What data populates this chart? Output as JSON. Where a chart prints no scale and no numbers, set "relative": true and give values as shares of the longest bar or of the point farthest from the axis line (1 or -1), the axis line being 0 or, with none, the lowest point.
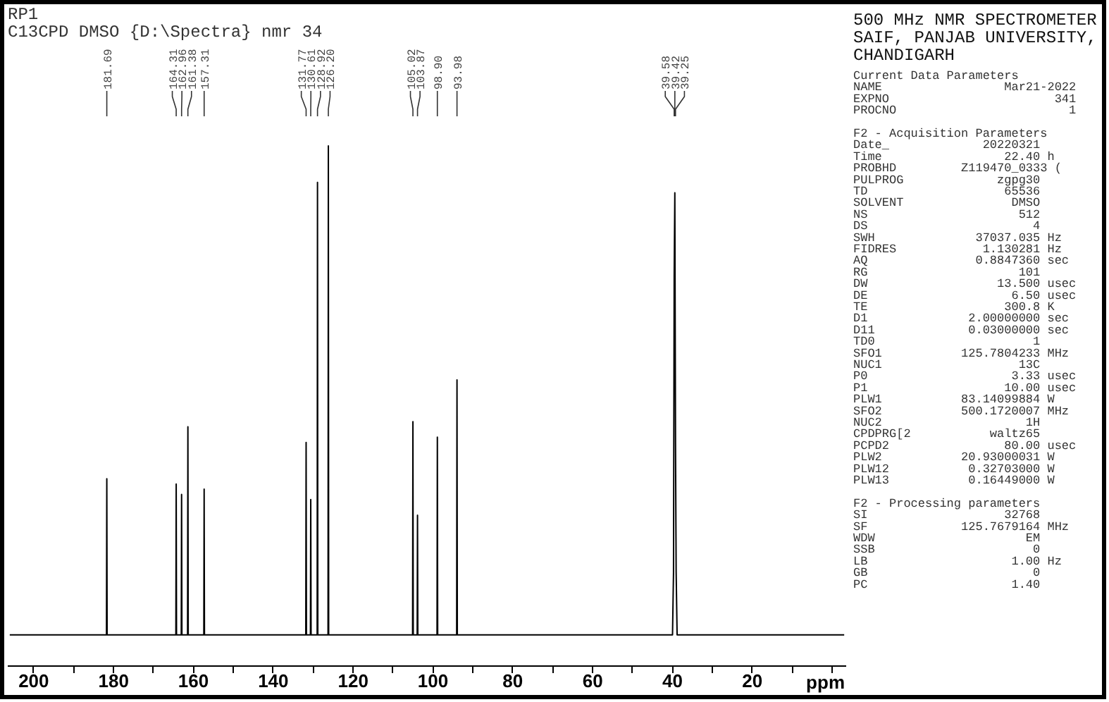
{
  "chart_data": [
    {
      "type": "line",
      "title": "RP1",
      "subtitle": "C13CPD DMSO {D:\\Spectra} nmr 34",
      "xlabel": "ppm",
      "relative": true,
      "xlim": [
        206.5,
        -3.5
      ],
      "xticks": [
        200,
        {
          "value": 190,
          "label": null
        },
        180,
        {
          "value": 170,
          "label": null
        },
        160,
        {
          "value": 150,
          "label": null
        },
        140,
        {
          "value": 130,
          "label": null
        },
        120,
        {
          "value": 110,
          "label": null
        },
        100,
        {
          "value": 90,
          "label": null
        },
        80,
        {
          "value": 70,
          "label": null
        },
        60,
        {
          "value": 50,
          "label": null
        },
        40,
        {
          "value": 30,
          "label": null
        },
        20,
        {
          "value": 10,
          "label": null
        },
        {
          "value": 0,
          "label": null
        }
      ],
      "series": [
        {
          "color": "#000000",
          "x": [
            206,
            181.77,
            181.69,
            181.61,
            164.39,
            164.31,
            164.23,
            163.04,
            162.96,
            162.88,
            161.46,
            161.38,
            161.3,
            157.39,
            157.31,
            157.23,
            131.85,
            131.77,
            131.69,
            130.69,
            130.61,
            130.53,
            129.0,
            128.92,
            128.84,
            126.28,
            126.2,
            126.12,
            105.1,
            105.02,
            104.94,
            103.95,
            103.87,
            103.79,
            98.98,
            98.9,
            98.82,
            94.06,
            93.98,
            93.9,
            40.0,
            39.75,
            39.58,
            39.42,
            39.25,
            39.09,
            38.85,
            -3
          ],
          "values": [
            0.06,
            0.06,
            0.36,
            0.06,
            0.06,
            0.35,
            0.06,
            0.06,
            0.33,
            0.06,
            0.06,
            0.46,
            0.06,
            0.06,
            0.34,
            0.06,
            0.06,
            0.43,
            0.06,
            0.06,
            0.32,
            0.06,
            0.06,
            0.93,
            0.06,
            0.06,
            1,
            0.06,
            0.06,
            0.47,
            0.06,
            0.06,
            0.29,
            0.06,
            0.06,
            0.44,
            0.06,
            0.06,
            0.55,
            0.06,
            0.06,
            0.18,
            0.75,
            0.91,
            0.43,
            0.18,
            0.06,
            0.06
          ]
        }
      ],
      "annotations": [
        {
          "text": "181.69",
          "x": 181.69
        },
        {
          "text": "164.31",
          "x": 164.31
        },
        {
          "text": "162.96",
          "x": 162.96
        },
        {
          "text": "161.38",
          "x": 161.38
        },
        {
          "text": "157.31",
          "x": 157.31
        },
        {
          "text": "131.77",
          "x": 131.77
        },
        {
          "text": "130.61",
          "x": 130.61
        },
        {
          "text": "128.92",
          "x": 128.92
        },
        {
          "text": "126.20",
          "x": 126.2
        },
        {
          "text": "105.02",
          "x": 105.02
        },
        {
          "text": "103.87",
          "x": 103.87
        },
        {
          "text": "98.90",
          "x": 98.9
        },
        {
          "text": "93.98",
          "x": 93.98
        },
        {
          "text": "39.58",
          "x": 39.58
        },
        {
          "text": "39.42",
          "x": 39.42
        },
        {
          "text": "39.25",
          "x": 39.25
        }
      ]
    },
    {
      "type": "other",
      "title": "500 MHz NMR SPECTROMETER",
      "subtitle": "SAIF, PANJAB UNIVERSITY, CHANDIGARH",
      "annotations": [
        "Current Data Parameters",
        "NAME                 Mar21-2022",
        "EXPNO                       341",
        "PROCNO                        1",
        "F2 - Acquisition Parameters",
        "Date_             20220321",
        "Time                 22.40 h",
        "PROBHD         Z119470_0333 (",
        "PULPROG             zgpg30",
        "TD                   65536",
        "SOLVENT               DMSO",
        "NS                     512",
        "DS                       4",
        "SWH              37037.035 Hz",
        "FIDRES            1.130281 Hz",
        "AQ               0.8847360 sec",
        "RG                     101",
        "DW                  13.500 usec",
        "DE                    6.50 usec",
        "TE                   300.8 K",
        "D1              2.00000000 sec",
        "D11             0.03000000 sec",
        "TD0                      1",
        "SFO1           125.7804233 MHz",
        "NUC1                   13C",
        "P0                    3.33 usec",
        "P1                   10.00 usec",
        "PLW1           83.14099884 W",
        "SFO2           500.1720007 MHz",
        "NUC2                    1H",
        "CPDPRG[2           waltz65",
        "PCPD2                80.00 usec",
        "PLW2           20.93000031 W",
        "PLW12           0.32703000 W",
        "PLW13           0.16449000 W",
        "F2 - Processing parameters",
        "SI                   32768",
        "SF             125.7679164 MHz",
        "WDW                     EM",
        "SSB                      0",
        "LB                    1.00 Hz",
        "GB                       0",
        "PC                    1.40"
      ]
    }
  ]
}
